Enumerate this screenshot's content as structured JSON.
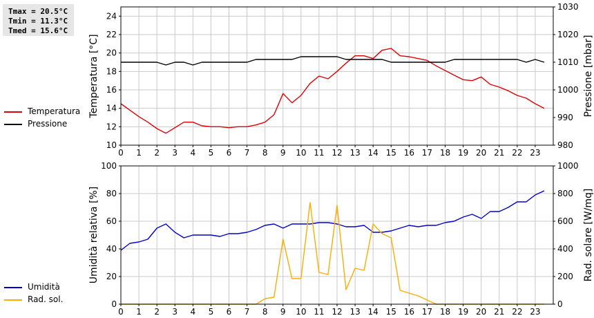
{
  "stats": {
    "tmax": "Tmax = 20.5°C",
    "tmin": "Tmin = 11.3°C",
    "tmed": "Tmed = 15.6°C"
  },
  "chart_data": [
    {
      "type": "line",
      "xlim": [
        0,
        24
      ],
      "x_ticks": [
        "0",
        "1",
        "2",
        "3",
        "4",
        "5",
        "6",
        "7",
        "8",
        "9",
        "10",
        "11",
        "12",
        "13",
        "14",
        "15",
        "16",
        "17",
        "18",
        "19",
        "20",
        "21",
        "22",
        "23"
      ],
      "ylabel": "Temperatura [°C]",
      "ylim": [
        10,
        25
      ],
      "y_ticks": [
        "10",
        "12",
        "14",
        "16",
        "18",
        "20",
        "22",
        "24"
      ],
      "y2label": "Pressione [mbar]",
      "y2lim": [
        980,
        1030
      ],
      "y2_ticks": [
        "980",
        "990",
        "1000",
        "1010",
        "1020",
        "1030"
      ],
      "grid": true,
      "legend_position": "left",
      "series": [
        {
          "name": "Temperatura",
          "color": "#dd0000",
          "axis": "left",
          "x": [
            0,
            0.5,
            1,
            1.5,
            2,
            2.5,
            3,
            3.5,
            4,
            4.5,
            5,
            5.5,
            6,
            6.5,
            7,
            7.5,
            8,
            8.5,
            9,
            9.5,
            10,
            10.5,
            11,
            11.5,
            12,
            12.5,
            13,
            13.5,
            14,
            14.5,
            15,
            15.5,
            16,
            16.5,
            17,
            17.5,
            18,
            18.5,
            19,
            19.5,
            20,
            20.5,
            21,
            21.5,
            22,
            22.5,
            23,
            23.5
          ],
          "y": [
            14.5,
            13.8,
            13.1,
            12.5,
            11.8,
            11.3,
            11.9,
            12.5,
            12.5,
            12.1,
            12.0,
            12.0,
            11.9,
            12.0,
            12.0,
            12.2,
            12.5,
            13.3,
            15.6,
            14.6,
            15.4,
            16.7,
            17.5,
            17.2,
            18.0,
            18.9,
            19.7,
            19.7,
            19.4,
            20.3,
            20.5,
            19.7,
            19.6,
            19.4,
            19.2,
            18.6,
            18.1,
            17.6,
            17.1,
            17.0,
            17.4,
            16.6,
            16.3,
            15.9,
            15.4,
            15.1,
            14.5,
            14.0
          ]
        },
        {
          "name": "Pressione",
          "color": "#000000",
          "axis": "right",
          "x": [
            0,
            0.5,
            1,
            1.5,
            2,
            2.5,
            3,
            3.5,
            4,
            4.5,
            5,
            5.5,
            6,
            6.5,
            7,
            7.5,
            8,
            8.5,
            9,
            9.5,
            10,
            10.5,
            11,
            11.5,
            12,
            12.5,
            13,
            13.5,
            14,
            14.5,
            15,
            15.5,
            16,
            16.5,
            17,
            17.5,
            18,
            18.5,
            19,
            19.5,
            20,
            20.5,
            21,
            21.5,
            22,
            22.5,
            23,
            23.5
          ],
          "y": [
            1010,
            1010,
            1010,
            1010,
            1010,
            1009,
            1010,
            1010,
            1009,
            1010,
            1010,
            1010,
            1010,
            1010,
            1010,
            1011,
            1011,
            1011,
            1011,
            1011,
            1012,
            1012,
            1012,
            1012,
            1012,
            1011,
            1011,
            1011,
            1011,
            1011,
            1010,
            1010,
            1010,
            1010,
            1010,
            1010,
            1010,
            1011,
            1011,
            1011,
            1011,
            1011,
            1011,
            1011,
            1011,
            1010,
            1011,
            1010
          ]
        }
      ]
    },
    {
      "type": "line",
      "xlim": [
        0,
        24
      ],
      "x_ticks": [
        "0",
        "1",
        "2",
        "3",
        "4",
        "5",
        "6",
        "7",
        "8",
        "9",
        "10",
        "11",
        "12",
        "13",
        "14",
        "15",
        "16",
        "17",
        "18",
        "19",
        "20",
        "21",
        "22",
        "23"
      ],
      "ylabel": "Umidità relativa [%]",
      "ylim": [
        0,
        100
      ],
      "y_ticks": [
        "0",
        "20",
        "40",
        "60",
        "80",
        "100"
      ],
      "y2label": "Rad. solare [W/mq]",
      "y2lim": [
        0,
        1000
      ],
      "y2_ticks": [
        "0",
        "200",
        "400",
        "600",
        "800",
        "1000"
      ],
      "grid": true,
      "legend_position": "left",
      "series": [
        {
          "name": "Umidità",
          "color": "#0000cc",
          "axis": "left",
          "x": [
            0,
            0.5,
            1,
            1.5,
            2,
            2.5,
            3,
            3.5,
            4,
            4.5,
            5,
            5.5,
            6,
            6.5,
            7,
            7.5,
            8,
            8.5,
            9,
            9.5,
            10,
            10.5,
            11,
            11.5,
            12,
            12.5,
            13,
            13.5,
            14,
            14.5,
            15,
            15.5,
            16,
            16.5,
            17,
            17.5,
            18,
            18.5,
            19,
            19.5,
            20,
            20.5,
            21,
            21.5,
            22,
            22.5,
            23,
            23.5
          ],
          "y": [
            39,
            44,
            45,
            47,
            55,
            58,
            52,
            48,
            50,
            50,
            50,
            49,
            51,
            51,
            52,
            54,
            57,
            58,
            55,
            58,
            58,
            58,
            59,
            59,
            58,
            56,
            56,
            57,
            52,
            52,
            53,
            55,
            57,
            56,
            57,
            57,
            59,
            60,
            63,
            65,
            62,
            67,
            67,
            70,
            74,
            74,
            79,
            82
          ]
        },
        {
          "name": "Rad. sol.",
          "color": "#ffaa00",
          "axis": "right",
          "x": [
            0,
            0.5,
            1,
            1.5,
            2,
            2.5,
            3,
            3.5,
            4,
            4.5,
            5,
            5.5,
            6,
            6.5,
            7,
            7.5,
            8,
            8.5,
            9,
            9.5,
            10,
            10.5,
            11,
            11.5,
            12,
            12.5,
            13,
            13.5,
            14,
            14.5,
            15,
            15.5,
            16,
            16.5,
            17,
            17.5,
            18,
            18.5,
            19,
            19.5,
            20,
            20.5,
            21,
            21.5,
            22,
            22.5,
            23,
            23.5
          ],
          "y": [
            0,
            0,
            0,
            0,
            0,
            0,
            0,
            0,
            0,
            0,
            0,
            0,
            0,
            0,
            0,
            0,
            40,
            50,
            470,
            185,
            185,
            735,
            230,
            215,
            715,
            105,
            260,
            245,
            580,
            510,
            480,
            100,
            80,
            60,
            30,
            0,
            0,
            0,
            0,
            0,
            0,
            0,
            0,
            0,
            0,
            0,
            0,
            0
          ]
        }
      ]
    }
  ]
}
